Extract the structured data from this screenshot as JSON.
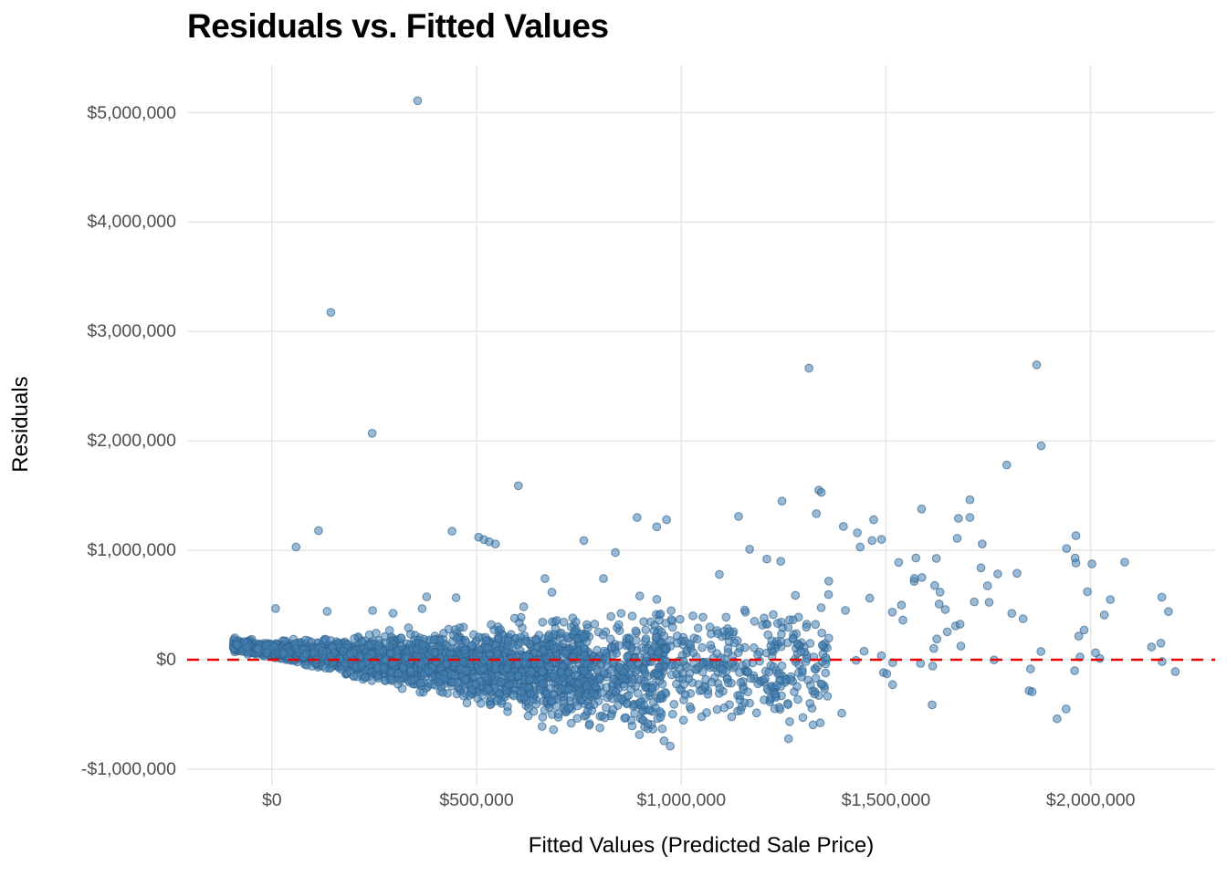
{
  "chart_data": {
    "type": "scatter",
    "title": "Residuals vs. Fitted Values",
    "xlabel": "Fitted Values (Predicted Sale Price)",
    "ylabel": "Residuals",
    "x_domain": [
      -207000,
      2304000
    ],
    "y_domain": [
      -1151000,
      5438000
    ],
    "x_ticks": [
      {
        "value": 0,
        "label": "$0"
      },
      {
        "value": 500000,
        "label": "$500,000"
      },
      {
        "value": 1000000,
        "label": "$1,000,000"
      },
      {
        "value": 1500000,
        "label": "$1,500,000"
      },
      {
        "value": 2000000,
        "label": "$2,000,000"
      }
    ],
    "y_ticks": [
      {
        "value": 5000000,
        "label": "$5,000,000"
      },
      {
        "value": 4000000,
        "label": "$4,000,000"
      },
      {
        "value": 3000000,
        "label": "$3,000,000"
      },
      {
        "value": 2000000,
        "label": "$2,000,000"
      },
      {
        "value": 1000000,
        "label": "$1,000,000"
      },
      {
        "value": 0,
        "label": "$0"
      },
      {
        "value": -1000000,
        "label": "-$1,000,000"
      }
    ],
    "grid": "major-only",
    "legend": "none",
    "colors": {
      "background": "#FFFFFF",
      "grid": "#E6E6E6",
      "tick_text": "#4D4D4D",
      "title_text": "#000000",
      "point_fill": "rgba(70,130,180,0.55)",
      "point_stroke": "rgba(46,97,138,0.65)",
      "reference_line": "#EC0000"
    },
    "point_style": {
      "radius": 4.3,
      "stroke_width": 1.1
    },
    "reference_line": {
      "y": 0,
      "style": "dashed",
      "dash": [
        13,
        9
      ],
      "width": 2.4
    },
    "outlier_points": [
      [
        356000,
        5110000
      ],
      [
        144000,
        3175000
      ],
      [
        245000,
        2070000
      ],
      [
        1312000,
        2665000
      ],
      [
        1868000,
        2695000
      ],
      [
        1879000,
        1955000
      ],
      [
        1795000,
        1780000
      ],
      [
        602000,
        1590000
      ],
      [
        1336000,
        1550000
      ],
      [
        1342000,
        1530000
      ],
      [
        1246000,
        1450000
      ],
      [
        1705000,
        1462000
      ],
      [
        1677000,
        1292000
      ],
      [
        1587000,
        1378000
      ],
      [
        1470000,
        1280000
      ],
      [
        1330000,
        1335000
      ],
      [
        1140000,
        1310000
      ],
      [
        1396000,
        1218000
      ],
      [
        1430000,
        1160000
      ],
      [
        892000,
        1300000
      ],
      [
        940000,
        1215000
      ],
      [
        964000,
        1280000
      ],
      [
        440000,
        1175000
      ],
      [
        114000,
        1180000
      ],
      [
        59000,
        1030000
      ],
      [
        505000,
        1120000
      ],
      [
        518000,
        1098000
      ],
      [
        531000,
        1078000
      ],
      [
        546000,
        1058000
      ],
      [
        762000,
        1090000
      ],
      [
        839000,
        980000
      ],
      [
        1167000,
        1010000
      ],
      [
        1209000,
        920000
      ],
      [
        1243000,
        900000
      ],
      [
        1437000,
        1030000
      ],
      [
        1466000,
        1090000
      ],
      [
        1489000,
        1100000
      ],
      [
        1531000,
        890000
      ],
      [
        1573000,
        930000
      ],
      [
        1674000,
        1110000
      ],
      [
        1705000,
        1300000
      ],
      [
        1735000,
        1058000
      ],
      [
        1732000,
        840000
      ],
      [
        1964000,
        1134000
      ],
      [
        1964000,
        884000
      ],
      [
        2083000,
        892000
      ],
      [
        1962000,
        930000
      ],
      [
        1623000,
        926000
      ],
      [
        1773000,
        784000
      ],
      [
        1820000,
        790000
      ],
      [
        1748000,
        676000
      ],
      [
        1632000,
        618000
      ],
      [
        1630000,
        509000
      ],
      [
        1645000,
        459000
      ],
      [
        1752000,
        525000
      ],
      [
        1992000,
        622000
      ],
      [
        2048000,
        550000
      ],
      [
        2190000,
        440000
      ],
      [
        1670000,
        309000
      ],
      [
        1681000,
        325000
      ],
      [
        1835000,
        375000
      ],
      [
        1984000,
        272000
      ],
      [
        1683000,
        125000
      ],
      [
        1764000,
        -2000
      ],
      [
        1974000,
        25000
      ],
      [
        1614000,
        -58000
      ],
      [
        1918000,
        -540000
      ],
      [
        1940000,
        -450000
      ],
      [
        1857000,
        -292000
      ],
      [
        973000,
        -790000
      ],
      [
        1262000,
        -722000
      ],
      [
        660000,
        -610000
      ],
      [
        688000,
        -640000
      ],
      [
        731000,
        -580000
      ],
      [
        9000,
        468000
      ],
      [
        1093000,
        780000
      ],
      [
        135000,
        442000
      ],
      [
        246000,
        450000
      ],
      [
        296000,
        425000
      ],
      [
        367000,
        467000
      ],
      [
        615000,
        484000
      ],
      [
        667000,
        742000
      ],
      [
        810000,
        742000
      ],
      [
        684000,
        617000
      ],
      [
        450000,
        567000
      ],
      [
        378000,
        575000
      ]
    ],
    "cloud_bands": [
      {
        "n": 2300,
        "v_min": -95000,
        "v_max": 780000,
        "v_exp": 1.0,
        "center_k": [
          90,
          -0.38,
          0.00014
        ],
        "spread_k": [
          30,
          0.26
        ],
        "clip_sigma": [
          -2.2,
          2.8
        ]
      },
      {
        "n": 300,
        "v_min": 760000,
        "v_max": 965000,
        "v_exp": 1.0,
        "center_k": [
          90,
          -0.38,
          0.00014
        ],
        "spread_k": [
          30,
          0.26
        ],
        "clip_sigma": [
          -2.2,
          2.8
        ]
      },
      {
        "n": 330,
        "v_min": 935000,
        "v_max": 1360000,
        "v_exp": 1.0,
        "center_k": [
          -30,
          0,
          0
        ],
        "spread_k": [
          250,
          0
        ],
        "clip_sigma": [
          -2.4,
          3.2
        ]
      },
      {
        "n": 45,
        "v_min": 1340000,
        "v_max": 2260000,
        "v_exp": 1.35,
        "center_k": [
          320,
          0,
          0
        ],
        "spread_k": [
          390,
          0
        ],
        "clip_sigma": [
          -2.2,
          3.1
        ]
      }
    ],
    "seed": 11
  }
}
